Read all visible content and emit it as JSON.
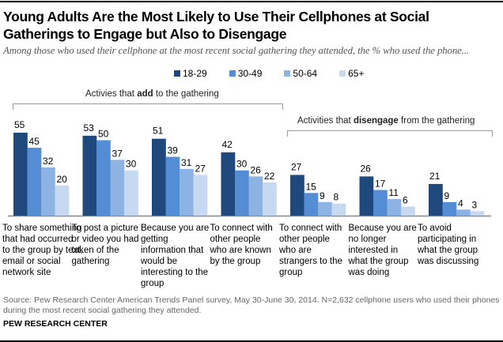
{
  "header": {
    "title": "Young Adults Are the Most Likely to Use Their Cellphones at Social Gatherings to Engage but Also to Disengage",
    "subtitle": "Among those who used their cellphone at the most recent social gathering they attended, the % who used the phone..."
  },
  "groups": {
    "add_label_pre": "Activies that ",
    "add_label_bold": "add",
    "add_label_post": " to the gathering",
    "disengage_label_pre": "Activities that ",
    "disengage_label_bold": "disengage",
    "disengage_label_post": " from the gathering"
  },
  "footer": {
    "source": "Source:  Pew Research Center American Trends Panel survey, May 30-June 30, 2014. N=2,632 cellphone users who used their phones during the most recent social gathering they attended.",
    "brand": "PEW RESEARCH CENTER"
  },
  "chart_data": {
    "type": "bar",
    "title": "Young Adults Are the Most Likely to Use Their Cellphones at Social Gatherings to Engage but Also to Disengage",
    "subtitle": "Among those who used their cellphone at the most recent social gathering they attended, the % who used the phone...",
    "xlabel": "",
    "ylabel": "",
    "ylim": [
      0,
      55
    ],
    "grid": false,
    "legend_position": "top-center",
    "categories": [
      "To share something that had occurred to the group by text, email or social network site",
      "To post a picture or video you had taken of the gathering",
      "Because you are getting information that would be interesting to the group",
      "To connect with other people who are known by the group",
      "To connect with other people who are strangers to the group",
      "Because you are no longer interested in what the group was doing",
      "To avoid participating in what the group was discussing"
    ],
    "series": [
      {
        "name": "18-29",
        "color": "#1f487c",
        "values": [
          55,
          53,
          51,
          42,
          27,
          26,
          21
        ]
      },
      {
        "name": "30-49",
        "color": "#548dd4",
        "values": [
          45,
          50,
          39,
          30,
          15,
          17,
          9
        ]
      },
      {
        "name": "50-64",
        "color": "#8db3e2",
        "values": [
          32,
          37,
          31,
          26,
          9,
          11,
          4
        ]
      },
      {
        "name": "65+",
        "color": "#c6d9f1",
        "values": [
          20,
          30,
          27,
          22,
          8,
          6,
          3
        ]
      }
    ],
    "annotations": [
      "Activies that add to the gathering",
      "Activities that disengage from the gathering"
    ]
  }
}
